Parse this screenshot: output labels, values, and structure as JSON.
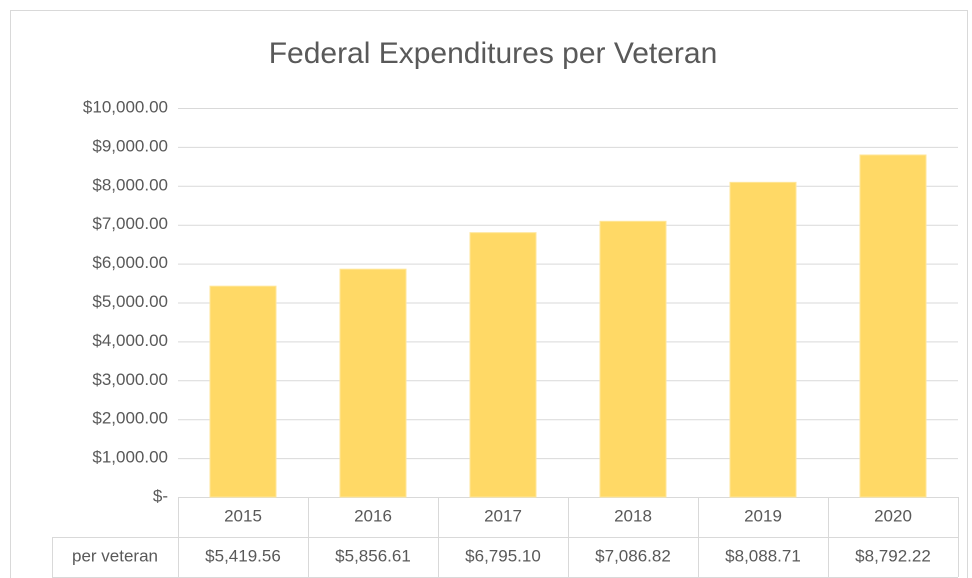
{
  "chart_data": {
    "type": "bar",
    "title": "Federal Expenditures per Veteran",
    "categories": [
      "2015",
      "2016",
      "2017",
      "2018",
      "2019",
      "2020"
    ],
    "series": [
      {
        "name": "per veteran",
        "color": "#ffd966",
        "values": [
          5419.56,
          5856.61,
          6795.1,
          7086.82,
          8088.71,
          8792.22
        ],
        "value_labels": [
          "$5,419.56",
          "$5,856.61",
          "$6,795.10",
          "$7,086.82",
          "$8,088.71",
          "$8,792.22"
        ]
      }
    ],
    "ylim": [
      0,
      10000
    ],
    "yticks": [
      {
        "value": 0,
        "label": "$-"
      },
      {
        "value": 1000,
        "label": "$1,000.00"
      },
      {
        "value": 2000,
        "label": "$2,000.00"
      },
      {
        "value": 3000,
        "label": "$3,000.00"
      },
      {
        "value": 4000,
        "label": "$4,000.00"
      },
      {
        "value": 5000,
        "label": "$5,000.00"
      },
      {
        "value": 6000,
        "label": "$6,000.00"
      },
      {
        "value": 7000,
        "label": "$7,000.00"
      },
      {
        "value": 8000,
        "label": "$8,000.00"
      },
      {
        "value": 9000,
        "label": "$9,000.00"
      },
      {
        "value": 10000,
        "label": "$10,000.00"
      }
    ],
    "grid": true
  }
}
